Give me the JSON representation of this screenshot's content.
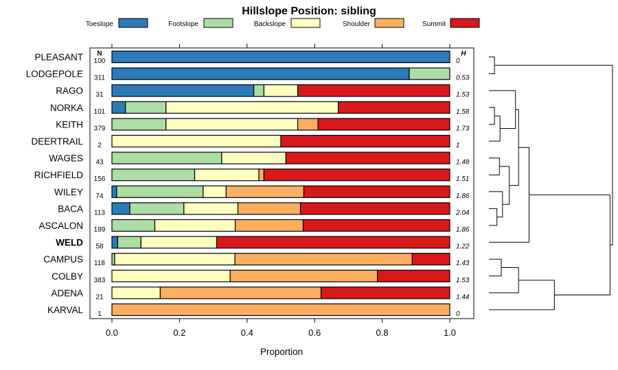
{
  "chart_data": {
    "type": "bar",
    "orientation": "horizontal",
    "stacked": true,
    "title": "Hillslope Position: sibling",
    "xlabel": "Proportion",
    "ylabel": "",
    "xlim": [
      0,
      1
    ],
    "x_ticks": [
      "0.0",
      "0.2",
      "0.4",
      "0.6",
      "0.8",
      "1.0"
    ],
    "legend_position": "top",
    "n_header": "N",
    "h_header": "H",
    "series": [
      {
        "name": "Toeslope",
        "color": "#2b7bba"
      },
      {
        "name": "Footslope",
        "color": "#abdda4"
      },
      {
        "name": "Backslope",
        "color": "#ffffbf"
      },
      {
        "name": "Shoulder",
        "color": "#fdae61"
      },
      {
        "name": "Summit",
        "color": "#d7191c"
      }
    ],
    "rows": [
      {
        "label": "PLEASANT",
        "n": "100",
        "h": "0",
        "values": [
          1.0,
          0,
          0,
          0,
          0
        ]
      },
      {
        "label": "LODGEPOLE",
        "n": "311",
        "h": "0.53",
        "values": [
          0.88,
          0.12,
          0,
          0,
          0
        ]
      },
      {
        "label": "RAGO",
        "n": "31",
        "h": "1.53",
        "values": [
          0.42,
          0.03,
          0.1,
          0,
          0.45
        ]
      },
      {
        "label": "NORKA",
        "n": "101",
        "h": "1.58",
        "values": [
          0.04,
          0.12,
          0.51,
          0,
          0.33
        ]
      },
      {
        "label": "KEITH",
        "n": "379",
        "h": "1.73",
        "values": [
          0,
          0.16,
          0.39,
          0.06,
          0.39
        ]
      },
      {
        "label": "DEERTRAIL",
        "n": "2",
        "h": "1",
        "values": [
          0,
          0,
          0.5,
          0,
          0.5
        ]
      },
      {
        "label": "WAGES",
        "n": "43",
        "h": "1.48",
        "values": [
          0,
          0.325,
          0.19,
          0,
          0.485
        ]
      },
      {
        "label": "RICHFIELD",
        "n": "156",
        "h": "1.51",
        "values": [
          0,
          0.245,
          0.19,
          0.015,
          0.55
        ]
      },
      {
        "label": "WILEY",
        "n": "74",
        "h": "1.86",
        "values": [
          0.014,
          0.256,
          0.068,
          0.23,
          0.432
        ]
      },
      {
        "label": "BACA",
        "n": "113",
        "h": "2.04",
        "values": [
          0.053,
          0.16,
          0.16,
          0.185,
          0.442
        ]
      },
      {
        "label": "ASCALON",
        "n": "189",
        "h": "1.86",
        "values": [
          0,
          0.127,
          0.238,
          0.201,
          0.434
        ]
      },
      {
        "label": "WELD",
        "n": "58",
        "h": "1.22",
        "values": [
          0.017,
          0.069,
          0.224,
          0,
          0.69
        ],
        "bold": true
      },
      {
        "label": "CAMPUS",
        "n": "118",
        "h": "1.43",
        "values": [
          0,
          0.008,
          0.356,
          0.525,
          0.111
        ]
      },
      {
        "label": "COLBY",
        "n": "383",
        "h": "1.53",
        "values": [
          0,
          0,
          0.35,
          0.436,
          0.214
        ]
      },
      {
        "label": "ADENA",
        "n": "21",
        "h": "1.44",
        "values": [
          0,
          0,
          0.143,
          0.476,
          0.381
        ]
      },
      {
        "label": "KARVAL",
        "n": "1",
        "h": "0",
        "values": [
          0,
          0,
          0,
          1.0,
          0
        ]
      }
    ],
    "dendrogram": {
      "type": "hierarchical clustering",
      "merges": [
        {
          "children": [
            "PLEASANT",
            "LODGEPOLE"
          ],
          "height": 0.045
        },
        {
          "children": [
            "NORKA",
            "KEITH"
          ],
          "height": 0.045
        },
        {
          "children": [
            "NORKA+KEITH",
            "DEERTRAIL"
          ],
          "height": 0.09
        },
        {
          "children": [
            "RAGO",
            "NORKA+KEITH+DEERTRAIL"
          ],
          "height": 0.215
        },
        {
          "children": [
            "WAGES",
            "RICHFIELD"
          ],
          "height": 0.085
        },
        {
          "children": [
            "BACA",
            "ASCALON"
          ],
          "height": 0.065
        },
        {
          "children": [
            "WILEY",
            "BACA+ASCALON"
          ],
          "height": 0.11
        },
        {
          "children": [
            "WAGES+RICHFIELD",
            "WILEY+BACA+ASCALON"
          ],
          "height": 0.165
        },
        {
          "children": [
            "RAGO+NORKA+KEITH+DEERTRAIL",
            "WAGES+RICHFIELD+WILEY+BACA+ASCALON"
          ],
          "height": 0.24
        },
        {
          "children": [
            "CLUSTER_A",
            "WELD"
          ],
          "height": 0.325
        },
        {
          "children": [
            "CAMPUS",
            "COLBY"
          ],
          "height": 0.1
        },
        {
          "children": [
            "CAMPUS+COLBY",
            "ADENA"
          ],
          "height": 0.24
        },
        {
          "children": [
            "CAMPUS+COLBY+ADENA",
            "KARVAL"
          ],
          "height": 0.53
        },
        {
          "children": [
            "CLUSTER_B",
            "CLUSTER_C"
          ],
          "height": 0.98
        },
        {
          "children": [
            "PLEASANT+LODGEPOLE",
            "REST"
          ],
          "height": 1.0
        }
      ]
    }
  }
}
